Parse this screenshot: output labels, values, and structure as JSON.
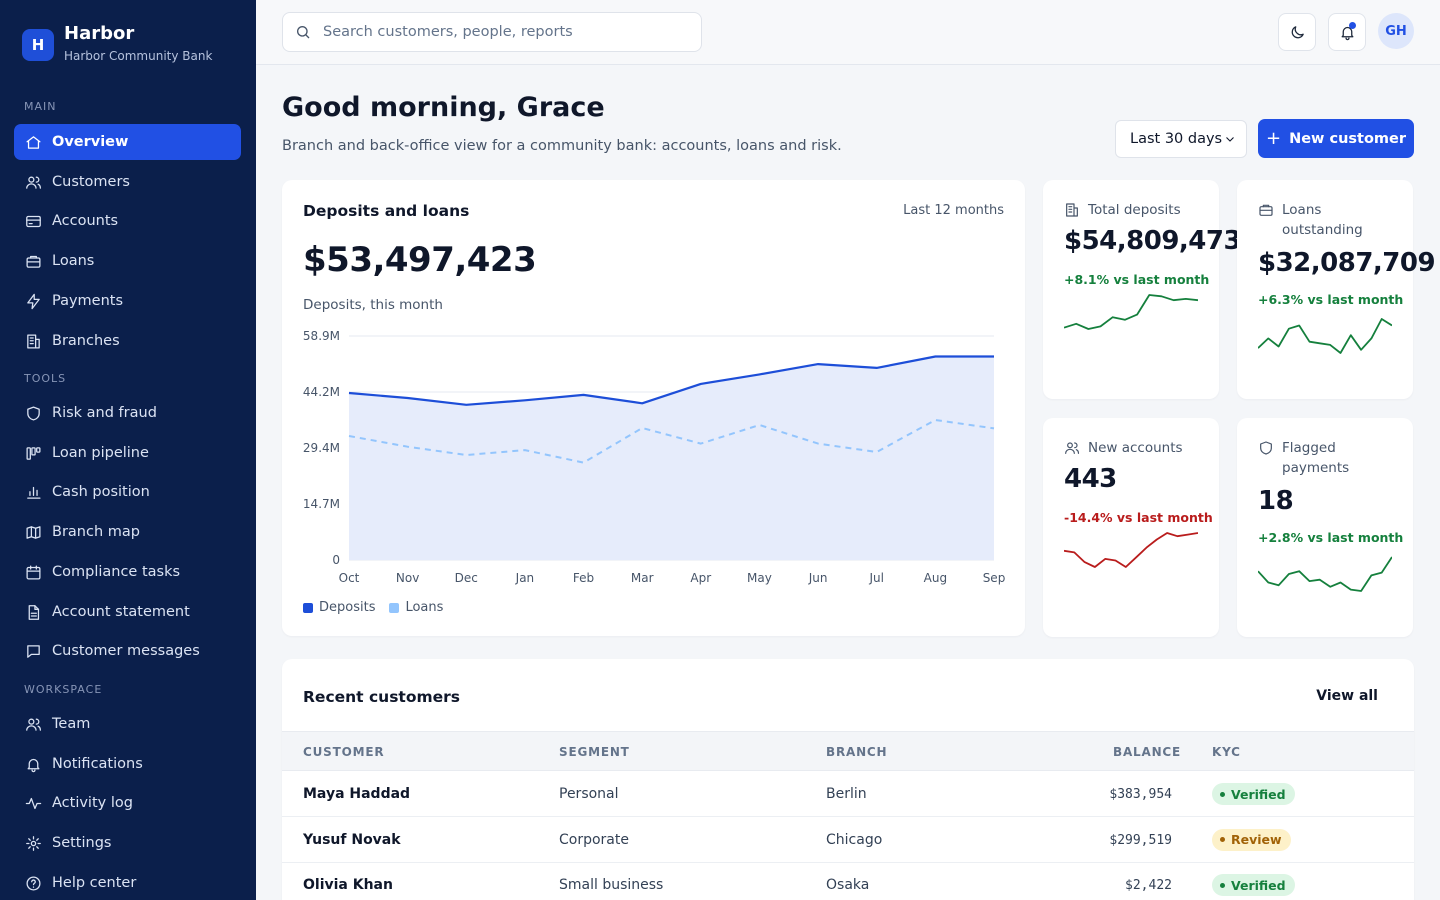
{
  "brand": {
    "logo_letter": "H",
    "name": "Harbor",
    "subtitle": "Harbor Community Bank"
  },
  "sidebar": {
    "sections": [
      {
        "title": "MAIN",
        "items": [
          {
            "label": "Overview",
            "icon": "home-icon",
            "active": true
          },
          {
            "label": "Customers",
            "icon": "users-icon"
          },
          {
            "label": "Accounts",
            "icon": "credit-card-icon"
          },
          {
            "label": "Loans",
            "icon": "briefcase-icon"
          },
          {
            "label": "Payments",
            "icon": "bolt-icon"
          },
          {
            "label": "Branches",
            "icon": "building-icon"
          }
        ]
      },
      {
        "title": "TOOLS",
        "items": [
          {
            "label": "Risk and fraud",
            "icon": "shield-icon"
          },
          {
            "label": "Loan pipeline",
            "icon": "kanban-icon"
          },
          {
            "label": "Cash position",
            "icon": "bar-chart-icon"
          },
          {
            "label": "Branch map",
            "icon": "map-icon"
          },
          {
            "label": "Compliance tasks",
            "icon": "calendar-icon"
          },
          {
            "label": "Account statement",
            "icon": "document-icon"
          },
          {
            "label": "Customer messages",
            "icon": "message-icon"
          }
        ]
      },
      {
        "title": "WORKSPACE",
        "items": [
          {
            "label": "Team",
            "icon": "team-icon"
          },
          {
            "label": "Notifications",
            "icon": "bell-icon"
          },
          {
            "label": "Activity log",
            "icon": "activity-icon"
          },
          {
            "label": "Settings",
            "icon": "gear-icon"
          },
          {
            "label": "Help center",
            "icon": "help-icon"
          }
        ]
      }
    ]
  },
  "topbar": {
    "search_placeholder": "Search customers, people, reports",
    "avatar_initials": "GH"
  },
  "header": {
    "greeting": "Good morning, Grace",
    "subtitle": "Branch and back-office view for a community bank: accounts, loans and risk.",
    "range_label": "Last 30 days",
    "new_button": "New customer"
  },
  "main_card": {
    "title": "Deposits and loans",
    "range": "Last 12 months",
    "value": "$53,497,423",
    "caption": "Deposits, this month"
  },
  "chart_data": {
    "type": "line",
    "title": "Deposits and loans",
    "categories": [
      "Oct",
      "Nov",
      "Dec",
      "Jan",
      "Feb",
      "Mar",
      "Apr",
      "May",
      "Jun",
      "Jul",
      "Aug",
      "Sep"
    ],
    "y_tick_labels": [
      "0",
      "14.7M",
      "29.4M",
      "44.2M",
      "58.9M"
    ],
    "ylim": [
      0,
      58.9
    ],
    "y_unit": "M",
    "grid": true,
    "legend": "bottom-left",
    "series": [
      {
        "name": "Deposits",
        "color": "#1d4ed8",
        "style": "solid-area",
        "values": [
          43.9,
          42.6,
          40.8,
          42.0,
          43.4,
          41.2,
          46.3,
          48.8,
          51.5,
          50.5,
          53.5,
          53.5
        ]
      },
      {
        "name": "Loans",
        "color": "#93c5fd",
        "style": "dashed",
        "values": [
          32.6,
          29.8,
          27.6,
          28.9,
          25.6,
          34.7,
          30.6,
          35.5,
          30.6,
          28.4,
          36.8,
          34.6
        ]
      }
    ]
  },
  "kpis": [
    {
      "label": "Total deposits",
      "icon": "building-icon",
      "value": "$54,809,473",
      "change": "+8.1% vs last month",
      "trend": "up",
      "color": "#15803d",
      "spark": [
        3,
        6,
        2,
        4,
        11,
        9,
        13,
        28,
        27,
        24,
        25,
        24
      ]
    },
    {
      "label": "Loans outstanding",
      "icon": "briefcase-icon",
      "value": "$32,087,709",
      "change": "+6.3% vs last month",
      "trend": "up",
      "color": "#15803d",
      "spark": [
        6,
        12,
        7,
        18,
        20,
        10,
        9,
        8,
        3,
        14,
        5,
        12,
        24,
        20
      ]
    },
    {
      "label": "New accounts",
      "icon": "users-icon",
      "value": "443",
      "change": "-14.4% vs last month",
      "trend": "down",
      "color": "#b91c1c",
      "spark": [
        15,
        14,
        8,
        5,
        10,
        9,
        5,
        11,
        17,
        22,
        26,
        24,
        25,
        26
      ]
    },
    {
      "label": "Flagged payments",
      "icon": "shield-icon",
      "value": "18",
      "change": "+2.8% vs last month",
      "trend": "up",
      "color": "#15803d",
      "spark": [
        16,
        8,
        6,
        14,
        16,
        9,
        10,
        5,
        8,
        3,
        2,
        13,
        15,
        26
      ]
    }
  ],
  "recent": {
    "title": "Recent customers",
    "link": "View all",
    "columns": [
      "CUSTOMER",
      "SEGMENT",
      "BRANCH",
      "BALANCE",
      "KYC"
    ],
    "rows": [
      {
        "name": "Maya Haddad",
        "segment": "Personal",
        "branch": "Berlin",
        "balance": "$383,954",
        "kyc": "Verified"
      },
      {
        "name": "Yusuf Novak",
        "segment": "Corporate",
        "branch": "Chicago",
        "balance": "$299,519",
        "kyc": "Review"
      },
      {
        "name": "Olivia Khan",
        "segment": "Small business",
        "branch": "Osaka",
        "balance": "$2,422",
        "kyc": "Verified"
      }
    ]
  }
}
